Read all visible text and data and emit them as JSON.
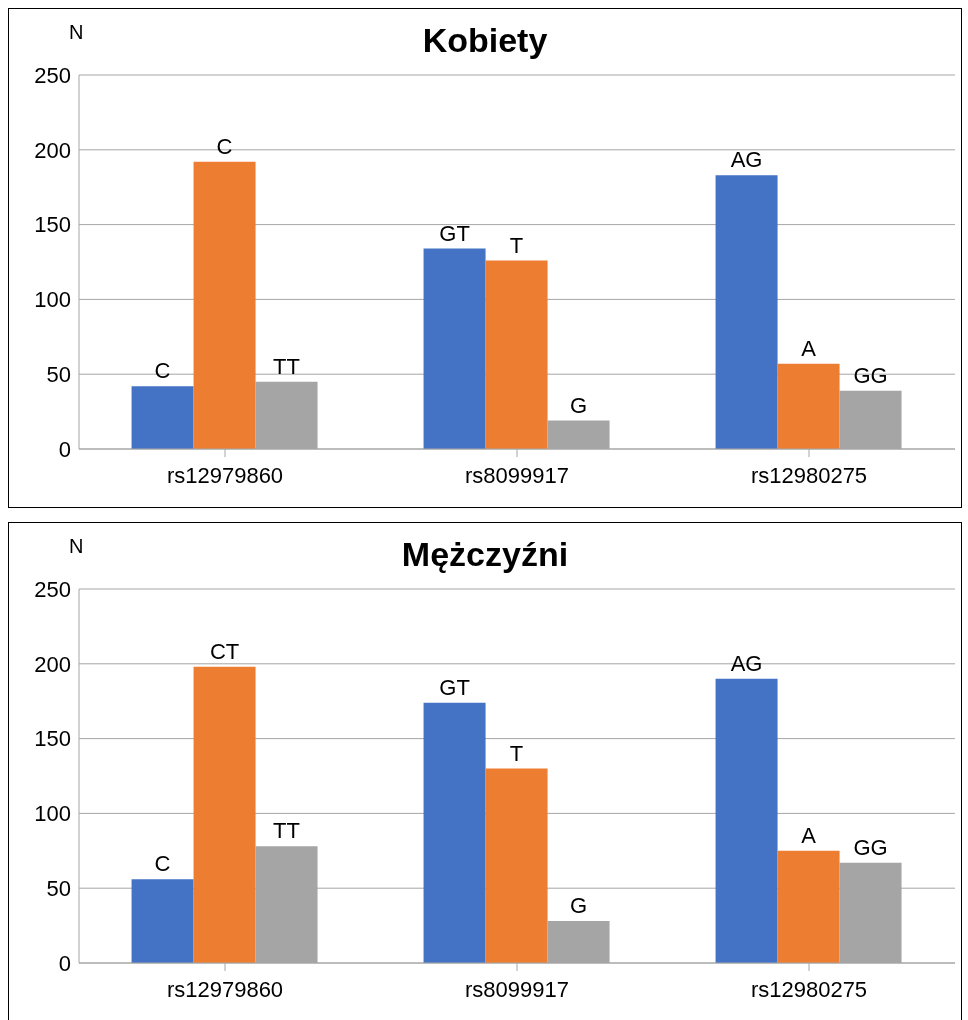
{
  "chart_data": [
    {
      "type": "bar",
      "title": "Kobiety",
      "ylabel": "N",
      "categories": [
        "rs12979860",
        "rs8099917",
        "rs12980275"
      ],
      "ylim": [
        0,
        250
      ],
      "yticks": [
        0,
        50,
        100,
        150,
        200,
        250
      ],
      "grid": "y",
      "series": [
        {
          "color": "#4472c4",
          "values": [
            42,
            134,
            183
          ],
          "value_labels": [
            "C",
            "GT",
            "AG"
          ]
        },
        {
          "color": "#ed7d31",
          "values": [
            192,
            126,
            57
          ],
          "value_labels": [
            "C",
            "T",
            "A"
          ]
        },
        {
          "color": "#a5a5a5",
          "values": [
            45,
            19,
            39
          ],
          "value_labels": [
            "TT",
            "G",
            "GG"
          ]
        }
      ]
    },
    {
      "type": "bar",
      "title": "Mężczyźni",
      "ylabel": "N",
      "categories": [
        "rs12979860",
        "rs8099917",
        "rs12980275"
      ],
      "ylim": [
        0,
        250
      ],
      "yticks": [
        0,
        50,
        100,
        150,
        200,
        250
      ],
      "grid": "y",
      "series": [
        {
          "color": "#4472c4",
          "values": [
            56,
            174,
            190
          ],
          "value_labels": [
            "C",
            "GT",
            "AG"
          ]
        },
        {
          "color": "#ed7d31",
          "values": [
            198,
            130,
            75
          ],
          "value_labels": [
            "CT",
            "T",
            "A"
          ]
        },
        {
          "color": "#a5a5a5",
          "values": [
            78,
            28,
            67
          ],
          "value_labels": [
            "TT",
            "G",
            "GG"
          ]
        }
      ]
    }
  ]
}
